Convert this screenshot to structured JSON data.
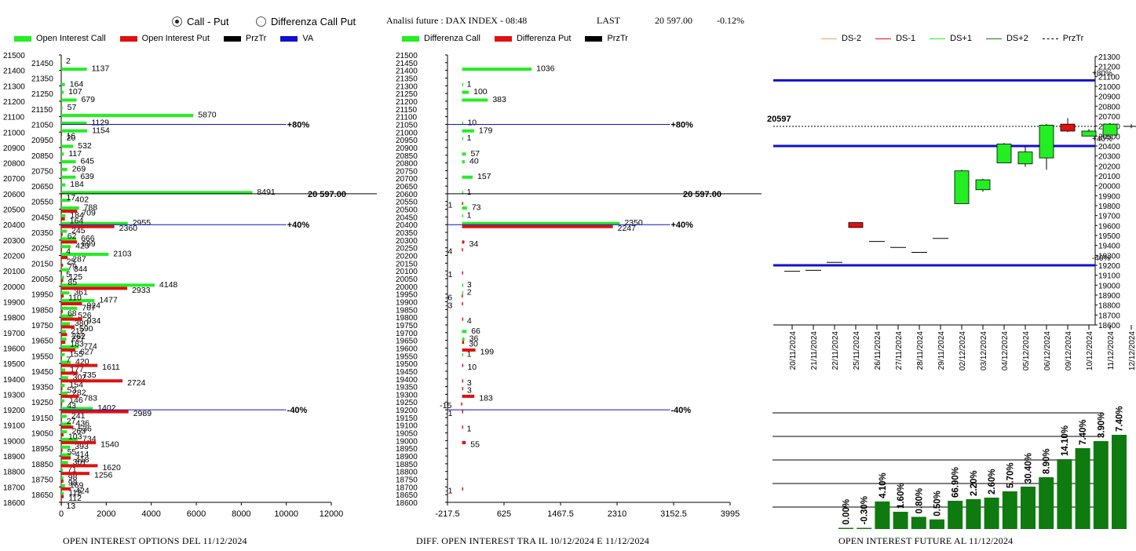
{
  "header": {
    "radio_call_put": "Call - Put",
    "radio_diff": "Differenza Call Put",
    "analisi": "Analisi future : DAX INDEX - 08:48",
    "last_label": "LAST",
    "last_value": "20 597.00",
    "last_change": "-0.12%"
  },
  "colors": {
    "green": "#22ee22",
    "red": "#e01010",
    "black": "#000000",
    "blue": "#1010d0",
    "darkgreen": "#0f7a0f"
  },
  "chart_data": [
    {
      "type": "bar",
      "caption": "OPEN INTEREST OPTIONS DEL 11/12/2024",
      "legend": [
        "Open Interest Call",
        "Open Interest Put",
        "PrzTr",
        "VA"
      ],
      "xlim": [
        0,
        12000
      ],
      "xticks": [
        "0",
        "2000",
        "4000",
        "6000",
        "8000",
        "10000",
        "12000"
      ],
      "ylim": [
        18600,
        21500
      ],
      "yticks_left": [
        "21500",
        "21400",
        "21300",
        "21200",
        "21100",
        "21000",
        "20900",
        "20800",
        "20700",
        "20600",
        "20500",
        "20400",
        "20300",
        "20200",
        "20100",
        "20000",
        "19900",
        "19800",
        "19700",
        "19600",
        "19500",
        "19400",
        "19300",
        "19200",
        "19100",
        "19000",
        "18900",
        "18800",
        "18700",
        "18600"
      ],
      "yticks_right": [
        "21450",
        "21350",
        "21250",
        "21150",
        "21050",
        "20950",
        "20850",
        "20750",
        "20650",
        "20550",
        "20450",
        "20350",
        "20250",
        "20150",
        "20050",
        "19950",
        "19850",
        "19750",
        "19650",
        "19550",
        "19450",
        "19350",
        "19250",
        "19150",
        "19050",
        "18950",
        "18850",
        "18750",
        "18650"
      ],
      "call": [
        [
          21450,
          2
        ],
        [
          21400,
          1137
        ],
        [
          21300,
          164
        ],
        [
          21250,
          107
        ],
        [
          21200,
          679
        ],
        [
          21150,
          57
        ],
        [
          21100,
          5870
        ],
        [
          21050,
          1129
        ],
        [
          21000,
          1154
        ],
        [
          20950,
          20
        ],
        [
          20900,
          532
        ],
        [
          20850,
          117
        ],
        [
          20800,
          645
        ],
        [
          20750,
          269
        ],
        [
          20700,
          639
        ],
        [
          20650,
          184
        ],
        [
          20600,
          8491
        ],
        [
          20550,
          402
        ],
        [
          20500,
          788
        ],
        [
          20450,
          184
        ],
        [
          20400,
          2955
        ],
        [
          20350,
          245
        ],
        [
          20300,
          666
        ],
        [
          20250,
          423
        ],
        [
          20200,
          2103
        ],
        [
          20150,
          25
        ],
        [
          20100,
          344
        ],
        [
          20050,
          125
        ],
        [
          20000,
          4148
        ],
        [
          19950,
          361
        ],
        [
          19900,
          1477
        ],
        [
          19850,
          707
        ],
        [
          19800,
          526
        ],
        [
          19750,
          380
        ],
        [
          19700,
          212
        ],
        [
          19650,
          227
        ],
        [
          19600,
          774
        ],
        [
          19550,
          155
        ],
        [
          19500,
          420
        ],
        [
          19450,
          177
        ],
        [
          19400,
          302
        ],
        [
          19350,
          154
        ],
        [
          19300,
          282
        ],
        [
          19250,
          146
        ],
        [
          19200,
          1402
        ],
        [
          19150,
          241
        ],
        [
          19100,
          436
        ],
        [
          19050,
          263
        ],
        [
          19000,
          734
        ],
        [
          18950,
          393
        ],
        [
          18900,
          414
        ],
        [
          18850,
          301
        ],
        [
          18800,
          71
        ],
        [
          18750,
          98
        ],
        [
          18700,
          169
        ],
        [
          18650,
          112
        ]
      ],
      "put": [
        [
          21000,
          16
        ],
        [
          20600,
          17
        ],
        [
          20500,
          709
        ],
        [
          20450,
          164
        ],
        [
          20400,
          2360
        ],
        [
          20350,
          62
        ],
        [
          20300,
          699
        ],
        [
          20250,
          4
        ],
        [
          20200,
          287
        ],
        [
          20150,
          79
        ],
        [
          20100,
          5
        ],
        [
          20050,
          85
        ],
        [
          20000,
          2933
        ],
        [
          19950,
          110
        ],
        [
          19900,
          924
        ],
        [
          19850,
          68
        ],
        [
          19800,
          934
        ],
        [
          19750,
          590
        ],
        [
          19700,
          262
        ],
        [
          19650,
          183
        ],
        [
          19600,
          627
        ],
        [
          19550,
          7
        ],
        [
          19500,
          1611
        ],
        [
          19450,
          735
        ],
        [
          19400,
          2724
        ],
        [
          19350,
          53
        ],
        [
          19300,
          783
        ],
        [
          19250,
          43
        ],
        [
          19200,
          2989
        ],
        [
          19150,
          27
        ],
        [
          19100,
          536
        ],
        [
          19050,
          103
        ],
        [
          19000,
          1540
        ],
        [
          18950,
          55
        ],
        [
          18900,
          418
        ],
        [
          18850,
          1620
        ],
        [
          18800,
          1256
        ],
        [
          18750,
          98
        ],
        [
          18700,
          424
        ],
        [
          18650,
          112
        ],
        [
          18600,
          13
        ]
      ],
      "annotations": [
        [
          "80%",
          21050,
          "blue"
        ],
        [
          "20 597.00",
          20600,
          "black"
        ],
        [
          "40%",
          20400,
          "blue"
        ],
        [
          "-40%",
          19200,
          "blue"
        ]
      ]
    },
    {
      "type": "bar",
      "caption": "DIFF. OPEN INTEREST TRA IL 10/12/2024 E 11/12/2024",
      "legend": [
        "Differenza Call",
        "Differenza Put",
        "PrzTr"
      ],
      "xlim": [
        -217.5,
        3995
      ],
      "xticks": [
        "-217.5",
        "625",
        "1467.5",
        "2310",
        "3152.5",
        "3995"
      ],
      "ylim": [
        18600,
        21500
      ],
      "yticks": [
        "21500",
        "21450",
        "21400",
        "21350",
        "21300",
        "21250",
        "21200",
        "21150",
        "21100",
        "21050",
        "21000",
        "20950",
        "20900",
        "20850",
        "20800",
        "20750",
        "20700",
        "20650",
        "20600",
        "20550",
        "20500",
        "20450",
        "20400",
        "20350",
        "20300",
        "20250",
        "20200",
        "20150",
        "20100",
        "20050",
        "20000",
        "19950",
        "19900",
        "19850",
        "19800",
        "19750",
        "19700",
        "19650",
        "19600",
        "19550",
        "19500",
        "19450",
        "19400",
        "19350",
        "19300",
        "19250",
        "19200",
        "19150",
        "19100",
        "19050",
        "19000",
        "18950",
        "18900",
        "18850",
        "18800",
        "18750",
        "18700",
        "18650",
        "18600"
      ],
      "call": [
        [
          21400,
          1036
        ],
        [
          21300,
          1
        ],
        [
          21250,
          100
        ],
        [
          21200,
          383
        ],
        [
          21050,
          10
        ],
        [
          21000,
          179
        ],
        [
          20950,
          1
        ],
        [
          20850,
          57
        ],
        [
          20800,
          40
        ],
        [
          20700,
          157
        ],
        [
          20600,
          1
        ],
        [
          20500,
          73
        ],
        [
          20450,
          1
        ],
        [
          20400,
          2350
        ],
        [
          19700,
          66
        ],
        [
          19650,
          36
        ],
        [
          19950,
          2
        ],
        [
          20000,
          3
        ],
        [
          19550,
          1
        ]
      ],
      "put": [
        [
          20550,
          -1
        ],
        [
          20400,
          2247
        ],
        [
          20300,
          34
        ],
        [
          20250,
          -4
        ],
        [
          20100,
          -1
        ],
        [
          19950,
          -6
        ],
        [
          19900,
          -3
        ],
        [
          19800,
          4
        ],
        [
          19650,
          30
        ],
        [
          19600,
          199
        ],
        [
          19500,
          10
        ],
        [
          19400,
          3
        ],
        [
          19350,
          3
        ],
        [
          19300,
          183
        ],
        [
          19250,
          -15
        ],
        [
          19200,
          -1
        ],
        [
          19100,
          1
        ],
        [
          19000,
          55
        ],
        [
          18700,
          -1
        ]
      ],
      "annotations": [
        [
          "80%",
          21050,
          "blue"
        ],
        [
          "20 597.00",
          20600,
          "black"
        ],
        [
          "40%",
          20400,
          "blue"
        ],
        [
          "-40%",
          19200,
          "blue"
        ]
      ]
    },
    {
      "type": "candlestick",
      "legend": [
        "DS-2",
        "DS-1",
        "DS+1",
        "DS+2",
        "PrzTr"
      ],
      "ylim": [
        18600,
        21300
      ],
      "yticks": [
        "21300",
        "21200",
        "21100",
        "21000",
        "20900",
        "20800",
        "20700",
        "20600",
        "20500",
        "20400",
        "20300",
        "20200",
        "20100",
        "20000",
        "19900",
        "19800",
        "19700",
        "19600",
        "19500",
        "19400",
        "19300",
        "19200",
        "19100",
        "19000",
        "18900",
        "18800",
        "18700",
        "18600"
      ],
      "categories": [
        "20/11/2024",
        "21/11/2024",
        "22/11/2024",
        "25/11/2024",
        "26/11/2024",
        "27/11/2024",
        "28/11/2024",
        "29/11/2024",
        "02/12/2024",
        "03/12/2024",
        "04/12/2024",
        "05/12/2024",
        "06/12/2024",
        "09/12/2024",
        "10/12/2024",
        "11/12/2024",
        "12/12/2024"
      ],
      "candles": [
        {
          "o": 19140,
          "c": 19140,
          "h": 19140,
          "l": 19140
        },
        {
          "o": 19150,
          "c": 19150,
          "h": 19150,
          "l": 19150
        },
        {
          "o": 19230,
          "c": 19230,
          "h": 19230,
          "l": 19230
        },
        {
          "o": 19630,
          "c": 19580,
          "h": 19630,
          "l": 19580
        },
        {
          "o": 19440,
          "c": 19440,
          "h": 19440,
          "l": 19440
        },
        {
          "o": 19380,
          "c": 19380,
          "h": 19380,
          "l": 19380
        },
        {
          "o": 19330,
          "c": 19330,
          "h": 19330,
          "l": 19330
        },
        {
          "o": 19470,
          "c": 19470,
          "h": 19470,
          "l": 19470
        },
        {
          "o": 19820,
          "c": 20150,
          "h": 20160,
          "l": 19820
        },
        {
          "o": 19960,
          "c": 20060,
          "h": 20070,
          "l": 19940
        },
        {
          "o": 20230,
          "c": 20420,
          "h": 20430,
          "l": 20230
        },
        {
          "o": 20220,
          "c": 20340,
          "h": 20400,
          "l": 20190
        },
        {
          "o": 20280,
          "c": 20610,
          "h": 20620,
          "l": 20160
        },
        {
          "o": 20620,
          "c": 20550,
          "h": 20680,
          "l": 20540
        },
        {
          "o": 20500,
          "c": 20550,
          "h": 20570,
          "l": 20500
        },
        {
          "o": 20510,
          "c": 20620,
          "h": 20630,
          "l": 20510
        },
        {
          "o": 20597,
          "c": 20597,
          "h": 20620,
          "l": 20580
        }
      ],
      "lines": [
        [
          "+80%",
          21060
        ],
        [
          "+40%",
          20400
        ],
        [
          "-40%",
          19200
        ]
      ],
      "przTr": 20597,
      "przTr_label": "20597"
    },
    {
      "type": "bar",
      "caption": "OPEN INTEREST FUTURE AL 11/12/2024",
      "values": [
        0.0,
        -0.3,
        4.1,
        1.6,
        0.8,
        0.5,
        66.9,
        2.2,
        2.6,
        5.7,
        30.4,
        8.9,
        14.1,
        7.4,
        3.9,
        7.4
      ],
      "labels": [
        "0.00%",
        "-0.30%",
        "4.10%",
        "1.60%",
        "0.80%",
        "0.50%",
        "66.90%",
        "2.20%",
        "2.60%",
        "5.70%",
        "30.40%",
        "8.90%",
        "14.10%",
        "7.40%",
        "3.90%",
        "7.40%"
      ]
    }
  ]
}
